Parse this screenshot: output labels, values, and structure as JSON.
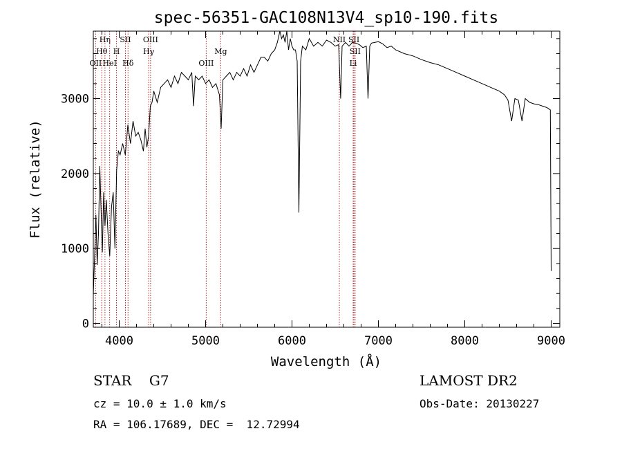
{
  "chart_data": {
    "type": "line",
    "title": "spec-56351-GAC108N13V4_sp10-190.fits",
    "xlabel": "Wavelength (Å)",
    "ylabel": "Flux (relative)",
    "xlim": [
      3700,
      9100
    ],
    "ylim": [
      -50,
      3900
    ],
    "x_ticks": [
      4000,
      5000,
      6000,
      7000,
      8000,
      9000
    ],
    "y_ticks": [
      0,
      1000,
      2000,
      3000
    ],
    "grid": false,
    "series": [
      {
        "x": [
          3700,
          3715,
          3730,
          3745,
          3760,
          3775,
          3790,
          3805,
          3820,
          3835,
          3850,
          3870,
          3890,
          3910,
          3930,
          3950,
          3970,
          3990,
          4010,
          4040,
          4070,
          4100,
          4130,
          4160,
          4190,
          4220,
          4250,
          4280,
          4300,
          4320,
          4340,
          4360,
          4380,
          4400,
          4440,
          4480,
          4520,
          4560,
          4600,
          4640,
          4680,
          4720,
          4760,
          4800,
          4840,
          4860,
          4880,
          4920,
          4960,
          5000,
          5040,
          5080,
          5120,
          5160,
          5180,
          5200,
          5240,
          5280,
          5320,
          5360,
          5400,
          5440,
          5480,
          5520,
          5560,
          5600,
          5640,
          5680,
          5720,
          5760,
          5800,
          5830,
          5860,
          5880,
          5900,
          5920,
          5940,
          5960,
          5980,
          6000,
          6020,
          6040,
          6060,
          6080,
          6100,
          6120,
          6160,
          6200,
          6250,
          6300,
          6350,
          6400,
          6450,
          6500,
          6540,
          6563,
          6580,
          6620,
          6660,
          6700,
          6740,
          6780,
          6820,
          6860,
          6880,
          6900,
          6920,
          6960,
          7000,
          7050,
          7100,
          7150,
          7200,
          7300,
          7400,
          7500,
          7600,
          7700,
          7800,
          7900,
          8000,
          8100,
          8200,
          8300,
          8400,
          8460,
          8500,
          8542,
          8580,
          8620,
          8662,
          8700,
          8750,
          8800,
          8850,
          8900,
          8950,
          8990,
          9000
        ],
        "y": [
          380,
          900,
          1450,
          780,
          1200,
          2100,
          1500,
          950,
          1750,
          1300,
          1650,
          1200,
          900,
          1550,
          1750,
          1000,
          2050,
          2300,
          2250,
          2400,
          2250,
          2650,
          2400,
          2700,
          2500,
          2550,
          2450,
          2300,
          2600,
          2350,
          2500,
          2900,
          2950,
          3100,
          2950,
          3150,
          3200,
          3250,
          3150,
          3300,
          3200,
          3350,
          3300,
          3250,
          3350,
          2900,
          3300,
          3250,
          3300,
          3200,
          3250,
          3150,
          3200,
          3050,
          2600,
          3250,
          3300,
          3350,
          3250,
          3350,
          3300,
          3400,
          3300,
          3450,
          3350,
          3450,
          3550,
          3550,
          3500,
          3600,
          3650,
          3750,
          3900,
          3800,
          3850,
          3750,
          3900,
          3650,
          3800,
          3700,
          3650,
          3650,
          3500,
          1480,
          3500,
          3700,
          3650,
          3800,
          3700,
          3750,
          3700,
          3780,
          3750,
          3700,
          3720,
          3000,
          3700,
          3750,
          3700,
          3750,
          3740,
          3720,
          3680,
          3700,
          3000,
          3700,
          3740,
          3750,
          3760,
          3730,
          3680,
          3700,
          3650,
          3600,
          3570,
          3520,
          3480,
          3450,
          3400,
          3350,
          3300,
          3250,
          3200,
          3150,
          3100,
          3050,
          2980,
          2700,
          3000,
          2980,
          2700,
          3000,
          2950,
          2930,
          2920,
          2900,
          2880,
          2850,
          700
        ]
      }
    ],
    "line_markers": [
      {
        "label": "OII",
        "x": 3727,
        "row": 3
      },
      {
        "label": "Hθ",
        "x": 3798,
        "row": 2
      },
      {
        "label": "Hη",
        "x": 3835,
        "row": 1
      },
      {
        "label": "HeI",
        "x": 3889,
        "row": 3
      },
      {
        "label": "H",
        "x": 3968,
        "row": 2
      },
      {
        "label": "SII",
        "x": 4072,
        "row": 1
      },
      {
        "label": "Hδ",
        "x": 4102,
        "row": 3
      },
      {
        "label": "OIII",
        "x": 4363,
        "row": 1
      },
      {
        "label": "Hγ",
        "x": 4341,
        "row": 2
      },
      {
        "label": "OIII",
        "x": 5007,
        "row": 3
      },
      {
        "label": "Mg",
        "x": 5175,
        "row": 2
      },
      {
        "label": "NII",
        "x": 6548,
        "row": 1
      },
      {
        "label": "SII",
        "x": 6717,
        "row": 1
      },
      {
        "label": "SII",
        "x": 6731,
        "row": 2
      },
      {
        "label": "Li",
        "x": 6708,
        "row": 3
      }
    ]
  },
  "info": {
    "object_class": "STAR    G7",
    "survey": "LAMOST DR2",
    "cz": "cz = 10.0 ± 1.0 km/s",
    "obs_date": "Obs-Date: 20130227",
    "radec": "RA = 106.17689, DEC =  12.72994"
  },
  "colors": {
    "spectrum": "#000000",
    "markers": "#b22222"
  }
}
